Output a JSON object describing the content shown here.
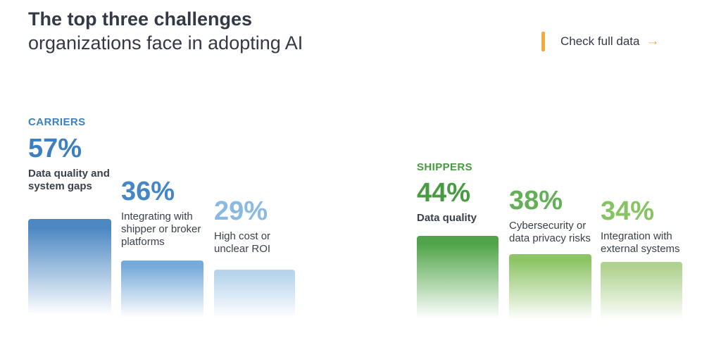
{
  "header": {
    "title_line1": "The top three challenges",
    "title_line2": "organizations face in adopting AI",
    "cta": {
      "label": "Check full data",
      "arrow": "→",
      "accent_color": "#f5a83c"
    }
  },
  "colors": {
    "title_text": "#333a45",
    "body_text": "#3a414b",
    "carriers_blue": "#3d80c2",
    "shippers_green": "#499b41",
    "accent_orange": "#f5a83c",
    "background": "#ffffff"
  },
  "chart_data": {
    "type": "bar",
    "title": "The top three challenges organizations face in adopting AI",
    "legend_position": "none",
    "grid": false,
    "unit": "%",
    "groups": [
      {
        "name": "CARRIERS",
        "label_color": "#3d80c2",
        "items": [
          {
            "value": 57,
            "display": "57%",
            "label": "Data quality and system gaps",
            "value_color": "#3d80c2",
            "bar_top_color": "#4d88c3"
          },
          {
            "value": 36,
            "display": "36%",
            "label": "Integrating with shipper or broker platforms",
            "value_color": "#4586c6",
            "bar_top_color": "#76aad9"
          },
          {
            "value": 29,
            "display": "29%",
            "label": "High cost or unclear ROI",
            "value_color": "#8abae2",
            "bar_top_color": "#b7d4ec"
          }
        ]
      },
      {
        "name": "SHIPPERS",
        "label_color": "#499b41",
        "items": [
          {
            "value": 44,
            "display": "44%",
            "label": "Data quality",
            "value_color": "#479b41",
            "bar_top_color": "#51a449"
          },
          {
            "value": 38,
            "display": "38%",
            "label": "Cybersecurity or data privacy risks",
            "value_color": "#63b156",
            "bar_top_color": "#8dc465"
          },
          {
            "value": 34,
            "display": "34%",
            "label": "Integration with external systems",
            "value_color": "#86c363",
            "bar_top_color": "#b0d290"
          }
        ]
      }
    ]
  }
}
